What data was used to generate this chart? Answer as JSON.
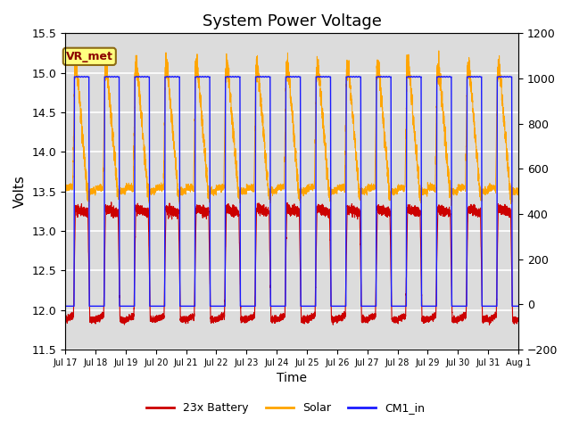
{
  "title": "System Power Voltage",
  "xlabel": "Time",
  "ylabel": "Volts",
  "ylim_left": [
    11.5,
    15.5
  ],
  "ylim_right": [
    -200,
    1200
  ],
  "yticks_left": [
    11.5,
    12.0,
    12.5,
    13.0,
    13.5,
    14.0,
    14.5,
    15.0,
    15.5
  ],
  "yticks_right": [
    -200,
    0,
    200,
    400,
    600,
    800,
    1000,
    1200
  ],
  "plot_bg_color": "#dcdcdc",
  "grid_color": "white",
  "annotation_text": "VR_met",
  "annotation_box_color": "#ffff80",
  "annotation_box_edge": "#8B6914",
  "colors": {
    "battery": "#cc0000",
    "solar": "#ffa500",
    "cm1": "#1a1aff"
  },
  "legend": [
    "23x Battery",
    "Solar",
    "CM1_in"
  ],
  "day_labels": [
    "Jul 17",
    "Jul 18",
    "Jul 19",
    "Jul 20",
    "Jul 21",
    "Jul 22",
    "Jul 23",
    "Jul 24",
    "Jul 25",
    "Jul 26",
    "Jul 27",
    "Jul 28",
    "Jul 29",
    "Jul 30",
    "Jul 31",
    "Aug 1"
  ],
  "num_days": 15,
  "pts_per_hour": 20
}
